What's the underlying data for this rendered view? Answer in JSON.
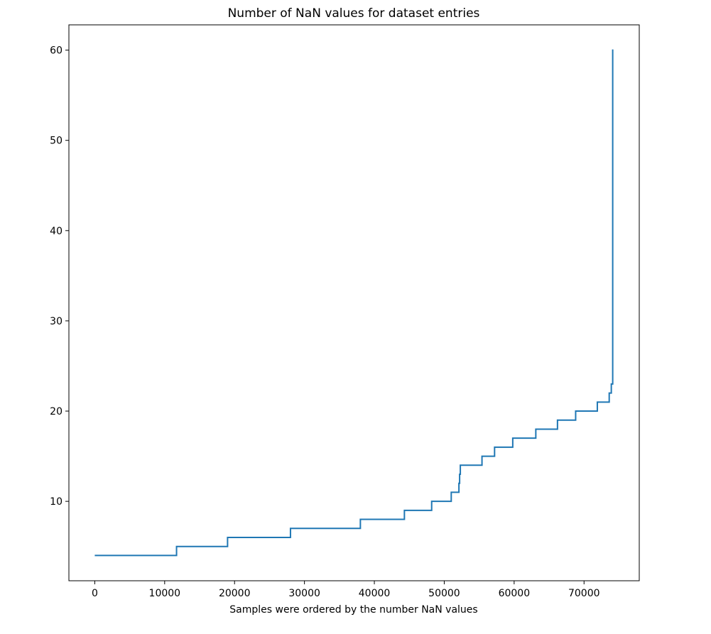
{
  "chart_data": {
    "type": "line",
    "title": "Number of NaN values for dataset entries",
    "xlabel": "Samples were ordered by the number NaN values",
    "ylabel": "",
    "xlim": [
      -3700,
      77900
    ],
    "ylim": [
      1.2,
      62.8
    ],
    "xticks": [
      0,
      10000,
      20000,
      30000,
      40000,
      50000,
      60000,
      70000
    ],
    "yticks": [
      10,
      20,
      30,
      40,
      50,
      60
    ],
    "grid": false,
    "legend": "none",
    "colors": {
      "line": "#1f77b4"
    },
    "series": [
      {
        "x": [
          0,
          11700,
          11700,
          19000,
          19000,
          28000,
          28000,
          38000,
          38000,
          44300,
          44300,
          48200,
          48200,
          51000,
          51000,
          52100,
          52100,
          52200,
          52200,
          52300,
          52300,
          52400,
          52400,
          55400,
          55400,
          57200,
          57200,
          59800,
          59800,
          63100,
          63100,
          66200,
          66200,
          68800,
          68800,
          71900,
          71900,
          73600,
          73600,
          73900,
          73900,
          74100,
          74100,
          74200,
          74200
        ],
        "y": [
          4,
          4,
          5,
          5,
          6,
          6,
          7,
          7,
          8,
          8,
          9,
          9,
          10,
          10,
          11,
          11,
          12,
          12,
          13,
          13,
          14,
          14,
          14,
          14,
          15,
          15,
          16,
          16,
          17,
          17,
          18,
          18,
          19,
          19,
          20,
          20,
          21,
          21,
          22,
          22,
          23,
          23,
          60,
          60,
          60
        ]
      }
    ]
  }
}
